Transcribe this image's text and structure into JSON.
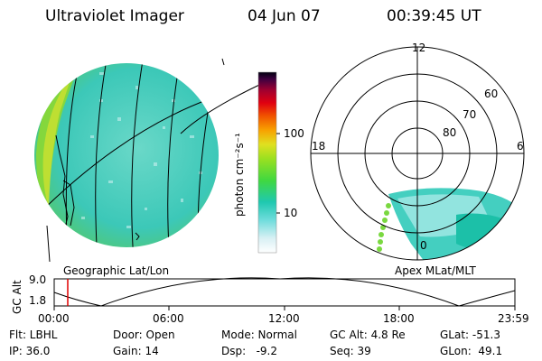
{
  "header": {
    "instrument": "Ultraviolet Imager",
    "date": "04 Jun 07",
    "time": "00:39:45 UT"
  },
  "colorbar": {
    "unit_label": "photon cm⁻²s⁻¹",
    "ticks": [
      "100",
      "10"
    ]
  },
  "polar": {
    "mlt_labels": {
      "top": "12",
      "left": "18",
      "right": "6",
      "bottom": "0"
    },
    "lat_labels": [
      "60",
      "70",
      "80"
    ]
  },
  "projections": {
    "left": "Geographic Lat/Lon",
    "right": "Apex MLat/MLT"
  },
  "altitude_plot": {
    "axis_label": "GC Alt",
    "y_ticks": [
      "9.0",
      "1.8"
    ],
    "x_ticks": [
      "00:00",
      "06:00",
      "12:00",
      "18:00",
      "23:59"
    ],
    "marker_color": "#e00000"
  },
  "info": {
    "row1": [
      "Flt: LBHL",
      "Door: Open",
      "Mode: Normal",
      "GC Alt: 4.8 Re",
      "GLat: -51.3"
    ],
    "row2": [
      "IP: 36.0",
      "Gain: 14",
      "Dsp:   -9.2",
      "Seq: 39",
      "GLon:  49.1"
    ]
  }
}
